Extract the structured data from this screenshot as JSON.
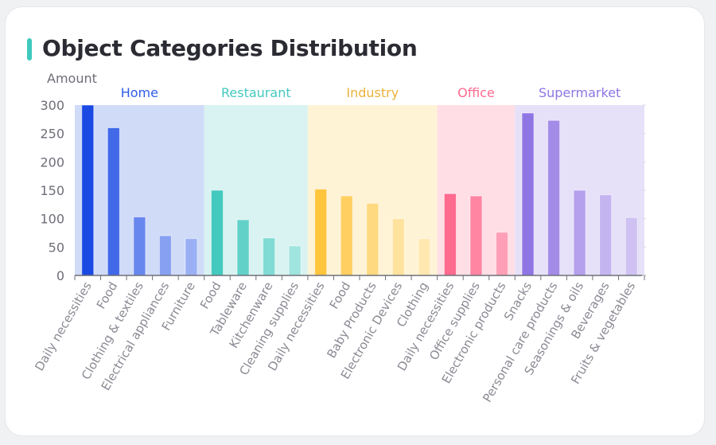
{
  "title": "Object Categories Distribution",
  "accent_color": "#3ec9bd",
  "chart_data": {
    "type": "bar",
    "title": "Object Categories Distribution",
    "ylabel": "Amount",
    "ylim": [
      0,
      300
    ],
    "yticks": [
      0,
      50,
      100,
      150,
      200,
      250,
      300
    ],
    "grid": false,
    "groups": [
      {
        "name": "Home",
        "color": "#2f5ce6",
        "band": "#d0dbf8",
        "bar_colors": [
          "#1a4ae3",
          "#4169e8",
          "#6787ee",
          "#87a0f1",
          "#9bb0f4"
        ],
        "categories": [
          "Daily necessities",
          "Food",
          "Clothing & textiles",
          "Electrical appliances",
          "Furniture"
        ],
        "values": [
          300,
          260,
          103,
          70,
          65
        ]
      },
      {
        "name": "Restaurant",
        "color": "#44c9be",
        "band": "#d8f3f1",
        "bar_colors": [
          "#44c9be",
          "#62d2c9",
          "#80dbd4",
          "#9fe4df"
        ],
        "categories": [
          "Food",
          "Tableware",
          "Kitchenware",
          "Cleaning supplies"
        ],
        "values": [
          150,
          98,
          66,
          52
        ]
      },
      {
        "name": "Industry",
        "color": "#e9b23c",
        "band": "#fff3d6",
        "bar_colors": [
          "#ffc53d",
          "#ffcf61",
          "#ffd97f",
          "#ffe29e",
          "#ffe8b0"
        ],
        "categories": [
          "Daily necessities",
          "Food",
          "Baby Products",
          "Electronic Devices",
          "Clothing"
        ],
        "values": [
          152,
          140,
          127,
          100,
          65
        ]
      },
      {
        "name": "Office",
        "color": "#ff6a8f",
        "band": "#ffdee6",
        "bar_colors": [
          "#ff6a8f",
          "#ff85a3",
          "#ff9fb6"
        ],
        "categories": [
          "Daily necessities",
          "Office supplies",
          "Electronic products"
        ],
        "values": [
          144,
          140,
          76
        ]
      },
      {
        "name": "Supermarket",
        "color": "#8f75e4",
        "band": "#e6e0f8",
        "bar_colors": [
          "#8f75e4",
          "#a38be8",
          "#b4a0ed",
          "#c4b4f0",
          "#cfc2f3"
        ],
        "categories": [
          "Snacks",
          "Personal care products",
          "Seasonings & oils",
          "Beverages",
          "Fruits & vegetables"
        ],
        "values": [
          286,
          273,
          150,
          142,
          102
        ]
      }
    ]
  }
}
